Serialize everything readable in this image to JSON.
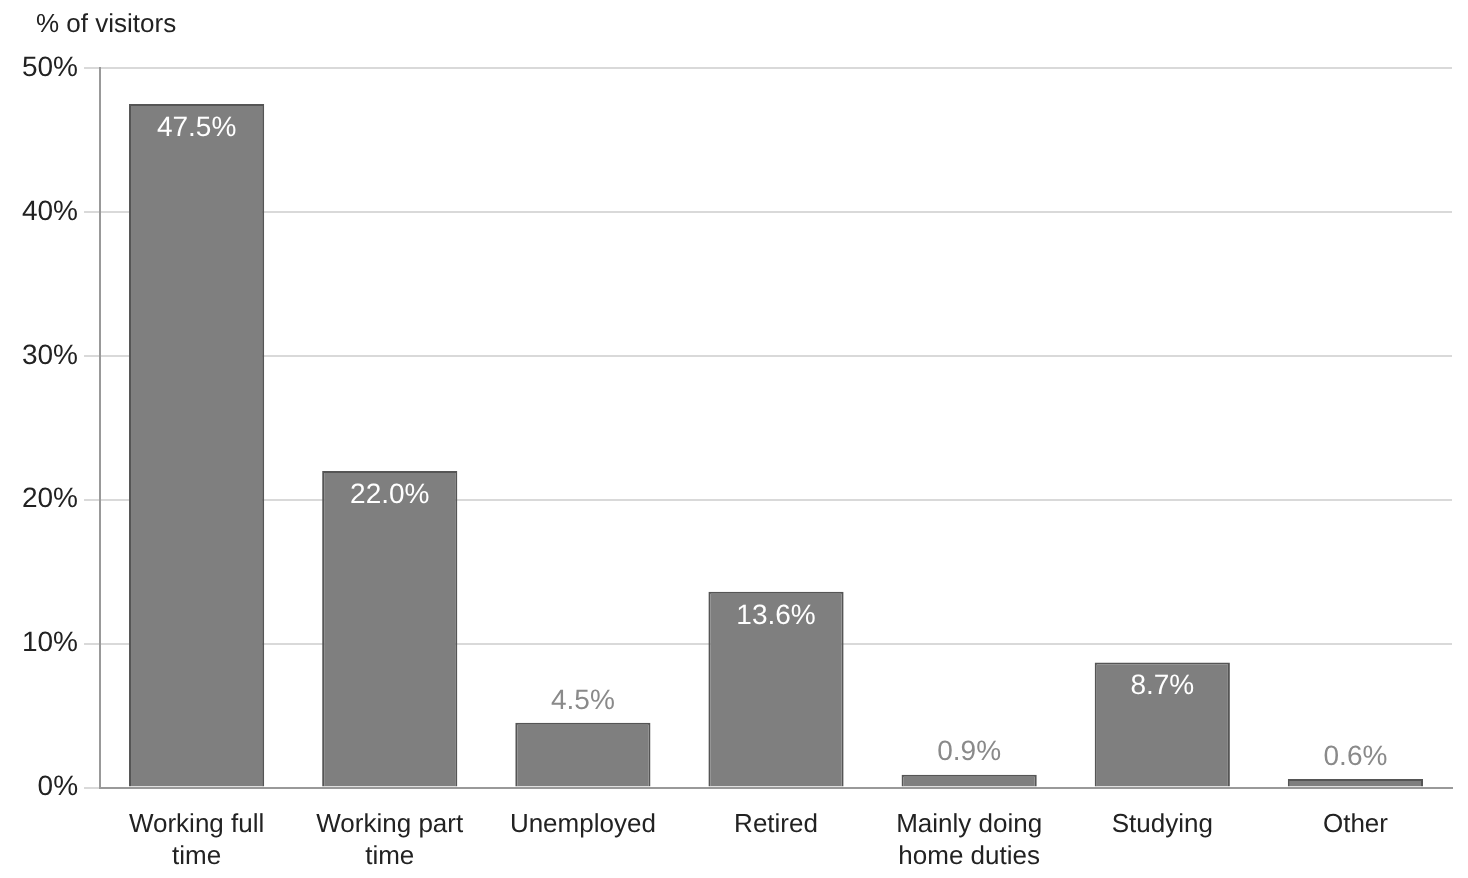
{
  "chart_data": {
    "type": "bar",
    "ylabel": "% of visitors",
    "categories": [
      "Working full time",
      "Working part time",
      "Unemployed",
      "Retired",
      "Mainly doing home duties",
      "Studying",
      "Other"
    ],
    "values": [
      47.5,
      22.0,
      4.5,
      13.6,
      0.9,
      8.7,
      0.6
    ],
    "value_labels": [
      "47.5%",
      "22.0%",
      "4.5%",
      "13.6%",
      "0.9%",
      "8.7%",
      "0.6%"
    ],
    "color": "#7f7f7f",
    "ylim": [
      0,
      50
    ],
    "yticks": [
      {
        "value": 0,
        "label": "0%"
      },
      {
        "value": 10,
        "label": "10%"
      },
      {
        "value": 20,
        "label": "20%"
      },
      {
        "value": 30,
        "label": "30%"
      },
      {
        "value": 40,
        "label": "40%"
      },
      {
        "value": 50,
        "label": "50%"
      }
    ],
    "grid": "y",
    "legend": false
  }
}
